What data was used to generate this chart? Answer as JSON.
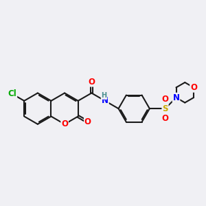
{
  "bg_color": "#f0f0f4",
  "bond_color": "#1a1a1a",
  "bond_width": 1.5,
  "atom_colors": {
    "O": "#ff0000",
    "N": "#0000ff",
    "Cl": "#00aa00",
    "S": "#ccaa00",
    "H": "#4a9090",
    "C": "#1a1a1a"
  },
  "font_size": 8.5,
  "fig_size": [
    3.0,
    3.0
  ],
  "dpi": 100
}
